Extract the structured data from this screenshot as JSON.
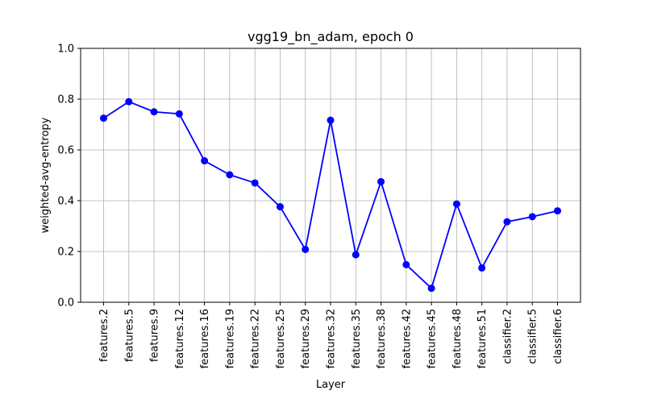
{
  "chart_data": {
    "type": "line",
    "title": "vgg19_bn_adam, epoch 0",
    "xlabel": "Layer",
    "ylabel": "weighted-avg-entropy",
    "ylim": [
      0.0,
      1.0
    ],
    "yticks": [
      "0.0",
      "0.2",
      "0.4",
      "0.6",
      "0.8",
      "1.0"
    ],
    "grid": true,
    "color": "#0000ff",
    "marker": "circle",
    "categories": [
      "features.2",
      "features.5",
      "features.9",
      "features.12",
      "features.16",
      "features.19",
      "features.22",
      "features.25",
      "features.29",
      "features.32",
      "features.35",
      "features.38",
      "features.42",
      "features.45",
      "features.48",
      "features.51",
      "classifier.2",
      "classifier.5",
      "classifier.6"
    ],
    "values": [
      0.725,
      0.79,
      0.75,
      0.742,
      0.557,
      0.502,
      0.47,
      0.376,
      0.208,
      0.717,
      0.187,
      0.475,
      0.148,
      0.055,
      0.387,
      0.135,
      0.317,
      0.337,
      0.36
    ]
  }
}
